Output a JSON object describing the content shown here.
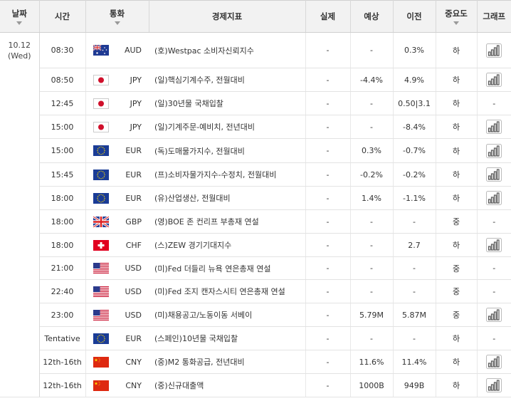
{
  "headers": {
    "date": "날짜",
    "time": "시간",
    "currency": "통화",
    "indicator": "경제지표",
    "actual": "실제",
    "forecast": "예상",
    "previous": "이전",
    "importance": "중요도",
    "graph": "그래프"
  },
  "date": {
    "day": "10.12",
    "weekday": "(Wed)"
  },
  "rows": [
    {
      "time": "08:30",
      "flag": "AU",
      "currency": "AUD",
      "indicator": "(호)Westpac 소비자신뢰지수",
      "actual": "-",
      "forecast": "-",
      "previous": "0.3%",
      "importance": "하",
      "graph": true
    },
    {
      "time": "08:50",
      "flag": "JP",
      "currency": "JPY",
      "indicator": "(일)핵심기계수주, 전월대비",
      "actual": "-",
      "forecast": "-4.4%",
      "previous": "4.9%",
      "importance": "하",
      "graph": true
    },
    {
      "time": "12:45",
      "flag": "JP",
      "currency": "JPY",
      "indicator": "(일)30년물 국채입찰",
      "actual": "-",
      "forecast": "-",
      "previous": "0.50|3.1",
      "importance": "하",
      "graph": false
    },
    {
      "time": "15:00",
      "flag": "JP",
      "currency": "JPY",
      "indicator": "(일)기계주문-예비치, 전년대비",
      "actual": "-",
      "forecast": "-",
      "previous": "-8.4%",
      "importance": "하",
      "graph": true
    },
    {
      "time": "15:00",
      "flag": "EU",
      "currency": "EUR",
      "indicator": "(독)도매물가지수, 전월대비",
      "actual": "-",
      "forecast": "0.3%",
      "previous": "-0.7%",
      "importance": "하",
      "graph": true
    },
    {
      "time": "15:45",
      "flag": "EU",
      "currency": "EUR",
      "indicator": "(프)소비자물가지수-수정치, 전월대비",
      "actual": "-",
      "forecast": "-0.2%",
      "previous": "-0.2%",
      "importance": "하",
      "graph": true
    },
    {
      "time": "18:00",
      "flag": "EU",
      "currency": "EUR",
      "indicator": "(유)산업생산, 전월대비",
      "actual": "-",
      "forecast": "1.4%",
      "previous": "-1.1%",
      "importance": "하",
      "graph": true
    },
    {
      "time": "18:00",
      "flag": "GB",
      "currency": "GBP",
      "indicator": "(영)BOE 존 컨리프 부총재 연설",
      "actual": "-",
      "forecast": "-",
      "previous": "-",
      "importance": "중",
      "graph": false
    },
    {
      "time": "18:00",
      "flag": "CH",
      "currency": "CHF",
      "indicator": "(스)ZEW 경기기대지수",
      "actual": "-",
      "forecast": "-",
      "previous": "2.7",
      "importance": "하",
      "graph": true
    },
    {
      "time": "21:00",
      "flag": "US",
      "currency": "USD",
      "indicator": "(미)Fed 더들리 뉴욕 연은총재 연설",
      "actual": "-",
      "forecast": "-",
      "previous": "-",
      "importance": "중",
      "graph": false
    },
    {
      "time": "22:40",
      "flag": "US",
      "currency": "USD",
      "indicator": "(미)Fed 조지 캔자스시티 연은총재 연설",
      "actual": "-",
      "forecast": "-",
      "previous": "-",
      "importance": "중",
      "graph": false
    },
    {
      "time": "23:00",
      "flag": "US",
      "currency": "USD",
      "indicator": "(미)채용공고/노동이동 서베이",
      "actual": "-",
      "forecast": "5.79M",
      "previous": "5.87M",
      "importance": "중",
      "graph": true
    },
    {
      "time": "Tentative",
      "flag": "EU",
      "currency": "EUR",
      "indicator": "(스페인)10년물 국채입찰",
      "actual": "-",
      "forecast": "-",
      "previous": "-",
      "importance": "하",
      "graph": false
    },
    {
      "time": "12th-16th",
      "flag": "CN",
      "currency": "CNY",
      "indicator": "(중)M2 통화공급, 전년대비",
      "actual": "-",
      "forecast": "11.6%",
      "previous": "11.4%",
      "importance": "하",
      "graph": true
    },
    {
      "time": "12th-16th",
      "flag": "CN",
      "currency": "CNY",
      "indicator": "(중)신규대출액",
      "actual": "-",
      "forecast": "1000B",
      "previous": "949B",
      "importance": "하",
      "graph": true
    }
  ],
  "no_graph_text": "-",
  "colors": {
    "header_bg": "#f2f2f2",
    "border": "#e3e3e3",
    "icon": "#555555"
  }
}
